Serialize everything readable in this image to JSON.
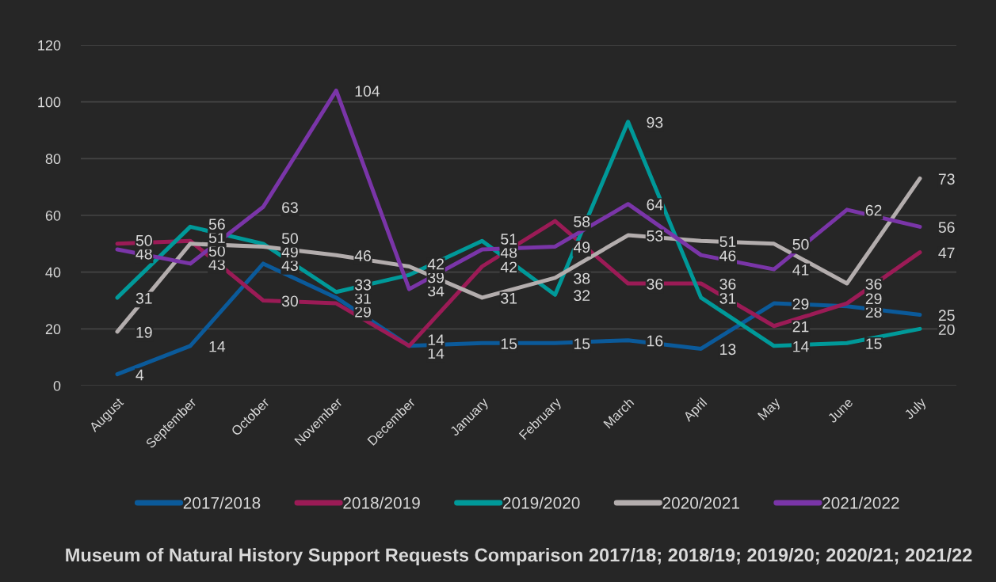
{
  "chart_data": {
    "type": "line",
    "title": "Museum of Natural History Support Requests Comparison 2017/18; 2018/19; 2019/20; 2020/21; 2021/22",
    "categories": [
      "August",
      "September",
      "October",
      "November",
      "December",
      "January",
      "February",
      "March",
      "April",
      "May",
      "June",
      "July"
    ],
    "series": [
      {
        "name": "2017/2018",
        "color": "#0b5a9a",
        "values": [
          4,
          14,
          43,
          31,
          14,
          15,
          15,
          16,
          13,
          29,
          28,
          25
        ]
      },
      {
        "name": "2018/2019",
        "color": "#9b1b56",
        "values": [
          50,
          51,
          30,
          29,
          14,
          42,
          58,
          36,
          36,
          21,
          29,
          47
        ]
      },
      {
        "name": "2019/2020",
        "color": "#009999",
        "values": [
          31,
          56,
          50,
          33,
          39,
          51,
          32,
          93,
          31,
          14,
          15,
          20
        ]
      },
      {
        "name": "2020/2021",
        "color": "#b3adad",
        "values": [
          19,
          50,
          49,
          46,
          42,
          31,
          38,
          53,
          51,
          50,
          36,
          73
        ]
      },
      {
        "name": "2021/2022",
        "color": "#7a35a8",
        "values": [
          48,
          43,
          63,
          104,
          34,
          48,
          49,
          64,
          46,
          41,
          62,
          56
        ]
      }
    ],
    "ylim": [
      0,
      120
    ],
    "yticks": [
      0,
      20,
      40,
      60,
      80,
      100,
      120
    ],
    "grid": "y",
    "legend": "bottom",
    "data_labels": true,
    "line_style": "solid"
  }
}
